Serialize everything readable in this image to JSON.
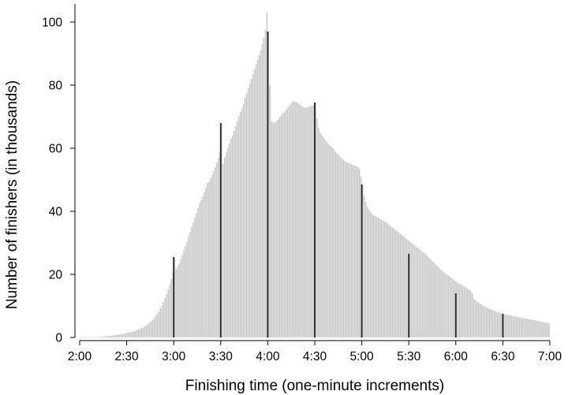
{
  "chart_data": {
    "type": "bar",
    "title": "",
    "xlabel": "Finishing time (one-minute increments)",
    "ylabel": "Number of finishers (in thousands)",
    "x_unit": "minutes",
    "x_range": [
      120,
      420
    ],
    "ylim": [
      0,
      105
    ],
    "grid": false,
    "x_ticks": [
      "2:00",
      "2:30",
      "3:00",
      "3:30",
      "4:00",
      "4:30",
      "5:00",
      "5:30",
      "6:00",
      "6:30",
      "7:00"
    ],
    "x_tick_values": [
      120,
      150,
      180,
      210,
      240,
      270,
      300,
      330,
      360,
      390,
      420
    ],
    "y_ticks": [
      0,
      20,
      40,
      60,
      80,
      100
    ],
    "colors": {
      "bars": "#c4c4c4",
      "highlight_bars": "#333333",
      "axis": "#000000"
    },
    "series": [
      {
        "values": [
          0.05,
          0.06,
          0.07,
          0.08,
          0.09,
          0.1,
          0.11,
          0.12,
          0.13,
          0.15,
          0.17,
          0.19,
          0.22,
          0.25,
          0.28,
          0.32,
          0.36,
          0.41,
          0.46,
          0.52,
          0.58,
          0.65,
          0.72,
          0.8,
          0.88,
          0.97,
          1.06,
          1.15,
          1.25,
          1.35,
          1.5,
          1.6,
          1.7,
          1.8,
          1.95,
          2.1,
          2.3,
          2.5,
          2.7,
          2.9,
          3.2,
          3.5,
          3.8,
          4.2,
          4.6,
          5.1,
          5.6,
          6.2,
          6.8,
          7.5,
          8.3,
          9.2,
          10.2,
          11.3,
          12.5,
          13.8,
          15.2,
          16.8,
          18.5,
          20.5,
          25.5,
          21.5,
          22.5,
          23.5,
          24.8,
          26.2,
          27.6,
          29,
          30.5,
          32,
          33.5,
          35,
          36.5,
          38,
          39.5,
          41,
          42.5,
          43.5,
          44.7,
          46,
          47.5,
          49,
          49.3,
          50.5,
          51.5,
          52.8,
          54,
          55.5,
          57,
          58.5,
          68,
          55,
          57,
          58.8,
          60,
          61.5,
          63,
          64,
          65.5,
          67,
          68.5,
          70,
          71.5,
          72.5,
          74,
          76,
          77.5,
          79,
          80.5,
          82,
          83.5,
          85,
          86.5,
          88,
          89.5,
          91,
          93,
          95,
          97.5,
          103,
          97,
          80,
          68.5,
          68.2,
          68,
          68.5,
          69,
          69.8,
          70.3,
          71,
          71.5,
          72,
          72.8,
          73.4,
          74,
          74.5,
          75,
          74.8,
          74.6,
          74.2,
          73.8,
          73.5,
          73.2,
          73,
          72.8,
          73,
          73.2,
          73.3,
          73.5,
          73.6,
          74.5,
          69.5,
          66.5,
          65,
          64.2,
          63.5,
          62.8,
          62.2,
          61.5,
          61,
          60.5,
          60,
          59.4,
          58.8,
          58.2,
          57.7,
          57.2,
          56.7,
          56.2,
          55.8,
          55.5,
          55.3,
          55.1,
          54.9,
          54.7,
          54.5,
          54.3,
          54.1,
          53.5,
          51,
          48.5,
          45,
          43,
          41.5,
          40.5,
          39.8,
          39.2,
          38.8,
          38.5,
          38.2,
          38,
          37.7,
          37.4,
          37.1,
          36.8,
          36.5,
          36.1,
          35.7,
          35.3,
          34.9,
          34.5,
          34.1,
          33.7,
          33.3,
          32.9,
          32.5,
          32.1,
          31.7,
          31.3,
          30.9,
          30.5,
          30.1,
          29.7,
          29.3,
          28.9,
          28.5,
          28.1,
          27.7,
          27.3,
          26.9,
          26.5,
          26,
          25.5,
          25,
          24.5,
          24,
          23.5,
          23,
          22.5,
          22,
          21.5,
          21.1,
          20.7,
          20.3,
          19.9,
          19.5,
          19.1,
          18.7,
          18.3,
          17.9,
          17.6,
          17.3,
          17,
          16.7,
          16.4,
          16.1,
          15.8,
          15.5,
          15.2,
          14.8,
          14,
          12.3,
          11.8,
          11.4,
          11,
          10.7,
          10.4,
          10.1,
          9.8,
          9.5,
          9.3,
          9.1,
          8.9,
          8.7,
          8.5,
          8.3,
          8.1,
          7.9,
          7.7,
          7.5,
          7.4,
          7.3,
          7.2,
          7.1,
          7,
          6.9,
          6.8,
          6.7,
          6.6,
          6.5,
          6.4,
          6.3,
          6.2,
          6.1,
          6,
          5.9,
          5.8,
          5.7,
          5.6,
          5.5,
          5.4,
          5.3,
          5.2,
          5.1,
          5,
          4.9,
          4.8,
          4.7,
          4.6,
          4.5
        ]
      }
    ],
    "highlight_values": [
      25.5,
      68,
      97,
      74.5,
      48.5,
      26.5,
      14,
      7.5
    ]
  }
}
